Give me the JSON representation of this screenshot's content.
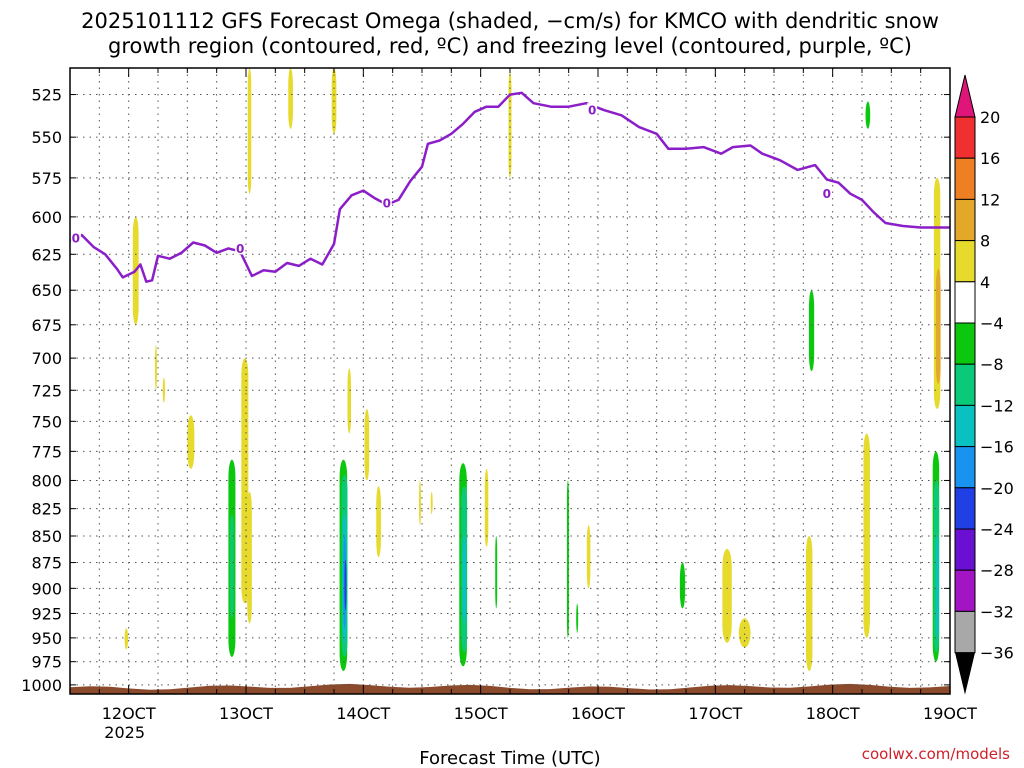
{
  "chart_data": {
    "type": "heatmap",
    "title_line1": "2025101112 GFS Forecast Omega (shaded, −cm/s) for KMCO with dendritic snow",
    "title_line2": "growth region (contoured, red, ºC) and freezing level (contoured, purple, ºC)",
    "xlabel": "Forecast Time (UTC)",
    "ylabel": "",
    "credit": "coolwx.com/models",
    "xlim": [
      11.5,
      19.0
    ],
    "ylim": [
      1010,
      510
    ],
    "x_ticks": [
      {
        "value": 12,
        "label": "12OCT",
        "sublabel": "2025"
      },
      {
        "value": 13,
        "label": "13OCT"
      },
      {
        "value": 14,
        "label": "14OCT"
      },
      {
        "value": 15,
        "label": "15OCT"
      },
      {
        "value": 16,
        "label": "16OCT"
      },
      {
        "value": 17,
        "label": "17OCT"
      },
      {
        "value": 18,
        "label": "18OCT"
      },
      {
        "value": 19,
        "label": "19OCT"
      }
    ],
    "y_ticks": [
      525,
      550,
      575,
      600,
      625,
      650,
      675,
      700,
      725,
      750,
      775,
      800,
      825,
      850,
      875,
      900,
      925,
      950,
      975,
      1000
    ],
    "colorbar": {
      "max_arrow_color": "#e0157a",
      "min_arrow_color": "#000000",
      "bins": [
        {
          "lo": 16,
          "hi": 20,
          "color": "#f03030"
        },
        {
          "lo": 12,
          "hi": 16,
          "color": "#ee7f22"
        },
        {
          "lo": 8,
          "hi": 12,
          "color": "#e3a82a"
        },
        {
          "lo": 4,
          "hi": 8,
          "color": "#e6da2c"
        },
        {
          "lo": -4,
          "hi": 4,
          "color": "#ffffff"
        },
        {
          "lo": -8,
          "hi": -4,
          "color": "#0bc80e"
        },
        {
          "lo": -12,
          "hi": -8,
          "color": "#0ac979"
        },
        {
          "lo": -16,
          "hi": -12,
          "color": "#0ac1c1"
        },
        {
          "lo": -20,
          "hi": -16,
          "color": "#1993f0"
        },
        {
          "lo": -24,
          "hi": -20,
          "color": "#2040e6"
        },
        {
          "lo": -28,
          "hi": -24,
          "color": "#6a10d2"
        },
        {
          "lo": -32,
          "hi": -28,
          "color": "#a315c4"
        },
        {
          "lo": -36,
          "hi": -32,
          "color": "#a8a8a8"
        }
      ],
      "labels": [
        20,
        16,
        12,
        8,
        4,
        -4,
        -8,
        -12,
        -16,
        -20,
        -24,
        -28,
        -32,
        -36
      ]
    },
    "freezing_level": {
      "label": "0",
      "color": "#8b1ec8",
      "label_positions": [
        {
          "t": 11.55,
          "p": 614
        },
        {
          "t": 12.95,
          "p": 621
        },
        {
          "t": 14.2,
          "p": 591
        },
        {
          "t": 15.95,
          "p": 534
        },
        {
          "t": 17.95,
          "p": 585
        }
      ],
      "points": [
        [
          11.5,
          616
        ],
        [
          11.6,
          612
        ],
        [
          11.7,
          620
        ],
        [
          11.8,
          625
        ],
        [
          11.9,
          635
        ],
        [
          11.95,
          641
        ],
        [
          12.05,
          637
        ],
        [
          12.1,
          632
        ],
        [
          12.15,
          644
        ],
        [
          12.2,
          643
        ],
        [
          12.25,
          626
        ],
        [
          12.35,
          628
        ],
        [
          12.45,
          624
        ],
        [
          12.55,
          617
        ],
        [
          12.65,
          619
        ],
        [
          12.75,
          624
        ],
        [
          12.85,
          621
        ],
        [
          12.95,
          623
        ],
        [
          13.05,
          640
        ],
        [
          13.15,
          636
        ],
        [
          13.25,
          637
        ],
        [
          13.35,
          631
        ],
        [
          13.45,
          633
        ],
        [
          13.55,
          628
        ],
        [
          13.65,
          632
        ],
        [
          13.75,
          618
        ],
        [
          13.8,
          595
        ],
        [
          13.9,
          586
        ],
        [
          14.0,
          583
        ],
        [
          14.1,
          588
        ],
        [
          14.2,
          592
        ],
        [
          14.3,
          589
        ],
        [
          14.4,
          577
        ],
        [
          14.5,
          568
        ],
        [
          14.55,
          554
        ],
        [
          14.65,
          552
        ],
        [
          14.75,
          548
        ],
        [
          14.85,
          542
        ],
        [
          14.95,
          535
        ],
        [
          15.05,
          532
        ],
        [
          15.15,
          532
        ],
        [
          15.25,
          525
        ],
        [
          15.35,
          524
        ],
        [
          15.45,
          530
        ],
        [
          15.6,
          532
        ],
        [
          15.75,
          532
        ],
        [
          15.9,
          530
        ],
        [
          16.05,
          534
        ],
        [
          16.2,
          537
        ],
        [
          16.35,
          544
        ],
        [
          16.5,
          548
        ],
        [
          16.6,
          557
        ],
        [
          16.75,
          557
        ],
        [
          16.9,
          556
        ],
        [
          17.05,
          560
        ],
        [
          17.15,
          556
        ],
        [
          17.3,
          555
        ],
        [
          17.4,
          560
        ],
        [
          17.55,
          564
        ],
        [
          17.7,
          570
        ],
        [
          17.85,
          567
        ],
        [
          17.95,
          576
        ],
        [
          18.05,
          578
        ],
        [
          18.15,
          585
        ],
        [
          18.25,
          589
        ],
        [
          18.35,
          597
        ],
        [
          18.45,
          604
        ],
        [
          18.6,
          606
        ],
        [
          18.75,
          607
        ],
        [
          18.9,
          607
        ],
        [
          19.0,
          607
        ]
      ]
    },
    "omega_regions": [
      {
        "t": 12.88,
        "p0": 782,
        "p1": 970,
        "w": 0.06,
        "color": "#0bc80e"
      },
      {
        "t": 12.88,
        "p0": 830,
        "p1": 930,
        "w": 0.03,
        "color": "#0ac979"
      },
      {
        "t": 13.83,
        "p0": 782,
        "p1": 985,
        "w": 0.065,
        "color": "#0bc80e"
      },
      {
        "t": 13.84,
        "p0": 795,
        "p1": 970,
        "w": 0.05,
        "color": "#0ac979"
      },
      {
        "t": 13.84,
        "p0": 830,
        "p1": 955,
        "w": 0.035,
        "color": "#0ac1c1"
      },
      {
        "t": 13.84,
        "p0": 850,
        "p1": 940,
        "w": 0.02,
        "color": "#1993f0"
      },
      {
        "t": 13.845,
        "p0": 872,
        "p1": 922,
        "w": 0.012,
        "color": "#2040e6"
      },
      {
        "t": 14.85,
        "p0": 785,
        "p1": 980,
        "w": 0.065,
        "color": "#0bc80e"
      },
      {
        "t": 14.86,
        "p0": 805,
        "p1": 965,
        "w": 0.05,
        "color": "#0ac979"
      },
      {
        "t": 14.86,
        "p0": 850,
        "p1": 935,
        "w": 0.03,
        "color": "#0ac1c1"
      },
      {
        "t": 15.13,
        "p0": 850,
        "p1": 920,
        "w": 0.012,
        "color": "#0bc80e"
      },
      {
        "t": 15.74,
        "p0": 800,
        "p1": 950,
        "w": 0.01,
        "color": "#0bc80e"
      },
      {
        "t": 15.82,
        "p0": 915,
        "p1": 945,
        "w": 0.012,
        "color": "#0bc80e"
      },
      {
        "t": 16.72,
        "p0": 875,
        "p1": 920,
        "w": 0.045,
        "color": "#0bc80e"
      },
      {
        "t": 17.82,
        "p0": 650,
        "p1": 710,
        "w": 0.045,
        "color": "#0bc80e"
      },
      {
        "t": 18.3,
        "p0": 529,
        "p1": 545,
        "w": 0.04,
        "color": "#0bc80e"
      },
      {
        "t": 18.88,
        "p0": 775,
        "p1": 975,
        "w": 0.055,
        "color": "#0bc80e"
      },
      {
        "t": 18.885,
        "p0": 800,
        "p1": 965,
        "w": 0.045,
        "color": "#0ac979"
      },
      {
        "t": 18.89,
        "p0": 850,
        "p1": 950,
        "w": 0.025,
        "color": "#0ac1c1"
      },
      {
        "t": 13.03,
        "p0": 510,
        "p1": 585,
        "w": 0.03,
        "color": "#e6da2c"
      },
      {
        "t": 13.38,
        "p0": 510,
        "p1": 545,
        "w": 0.04,
        "color": "#e6da2c"
      },
      {
        "t": 13.75,
        "p0": 510,
        "p1": 548,
        "w": 0.04,
        "color": "#e6da2c"
      },
      {
        "t": 15.25,
        "p0": 512,
        "p1": 575,
        "w": 0.025,
        "color": "#e6da2c"
      },
      {
        "t": 12.06,
        "p0": 600,
        "p1": 675,
        "w": 0.05,
        "color": "#e6da2c"
      },
      {
        "t": 12.23,
        "p0": 690,
        "p1": 725,
        "w": 0.012,
        "color": "#e6da2c"
      },
      {
        "t": 12.3,
        "p0": 715,
        "p1": 735,
        "w": 0.02,
        "color": "#e6da2c"
      },
      {
        "t": 12.53,
        "p0": 745,
        "p1": 790,
        "w": 0.06,
        "color": "#e6da2c"
      },
      {
        "t": 12.99,
        "p0": 700,
        "p1": 915,
        "w": 0.06,
        "color": "#e6da2c"
      },
      {
        "t": 13.03,
        "p0": 810,
        "p1": 935,
        "w": 0.04,
        "color": "#e6da2c"
      },
      {
        "t": 13.88,
        "p0": 708,
        "p1": 760,
        "w": 0.03,
        "color": "#e6da2c"
      },
      {
        "t": 14.03,
        "p0": 740,
        "p1": 800,
        "w": 0.04,
        "color": "#e6da2c"
      },
      {
        "t": 14.13,
        "p0": 805,
        "p1": 870,
        "w": 0.04,
        "color": "#e6da2c"
      },
      {
        "t": 14.48,
        "p0": 800,
        "p1": 840,
        "w": 0.012,
        "color": "#e6da2c"
      },
      {
        "t": 14.58,
        "p0": 810,
        "p1": 830,
        "w": 0.012,
        "color": "#e6da2c"
      },
      {
        "t": 15.05,
        "p0": 790,
        "p1": 860,
        "w": 0.03,
        "color": "#e6da2c"
      },
      {
        "t": 15.92,
        "p0": 840,
        "p1": 900,
        "w": 0.03,
        "color": "#e6da2c"
      },
      {
        "t": 11.98,
        "p0": 940,
        "p1": 962,
        "w": 0.03,
        "color": "#e6da2c"
      },
      {
        "t": 17.1,
        "p0": 862,
        "p1": 955,
        "w": 0.08,
        "color": "#e6da2c"
      },
      {
        "t": 17.25,
        "p0": 930,
        "p1": 960,
        "w": 0.1,
        "color": "#e6da2c"
      },
      {
        "t": 17.8,
        "p0": 850,
        "p1": 985,
        "w": 0.055,
        "color": "#e6da2c"
      },
      {
        "t": 18.29,
        "p0": 760,
        "p1": 950,
        "w": 0.055,
        "color": "#e6da2c"
      },
      {
        "t": 18.89,
        "p0": 575,
        "p1": 740,
        "w": 0.055,
        "color": "#e6da2c"
      },
      {
        "t": 18.9,
        "p0": 635,
        "p1": 720,
        "w": 0.04,
        "color": "#e3a82a"
      }
    ],
    "ground_color": "#8b4a2b"
  }
}
